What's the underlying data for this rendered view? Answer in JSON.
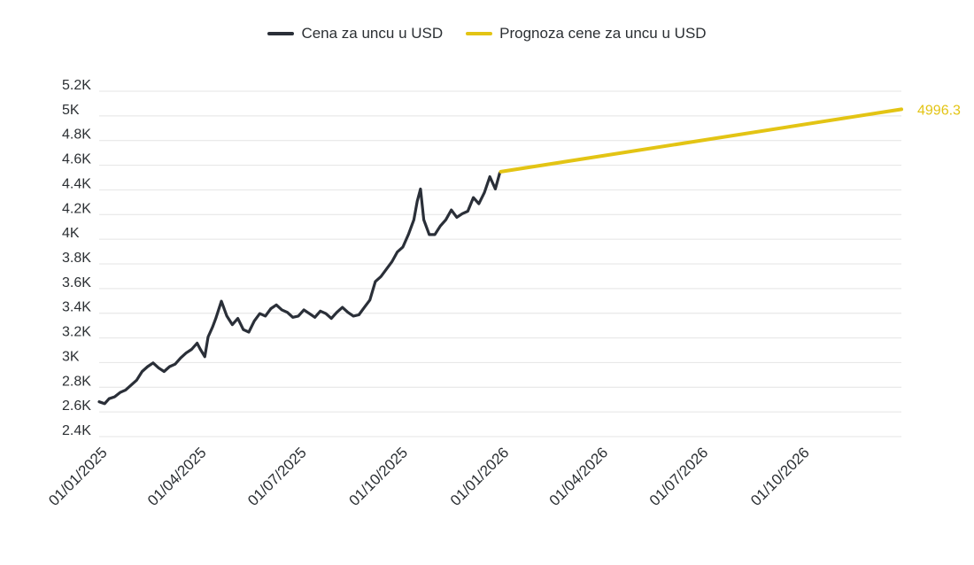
{
  "legend": {
    "actual_label": "Cena za uncu u USD",
    "forecast_label": "Prognoza cene za uncu u USD"
  },
  "colors": {
    "actual": "#2a2f38",
    "forecast": "#e3c414",
    "grid": "#e4e4e4",
    "text": "#2b2f33"
  },
  "chart_data": {
    "type": "line",
    "title": "",
    "xlabel": "",
    "ylabel": "",
    "xlim": [
      "2025-01-01",
      "2026-12-31"
    ],
    "ylim": [
      2400,
      5200
    ],
    "grid": true,
    "legend_position": "top-center",
    "y_ticks": [
      "2.4K",
      "2.6K",
      "2.8K",
      "3K",
      "3.2K",
      "3.4K",
      "3.6K",
      "3.8K",
      "4K",
      "4.2K",
      "4.4K",
      "4.6K",
      "4.8K",
      "5K",
      "5.2K"
    ],
    "y_tick_values": [
      2400,
      2600,
      2800,
      3000,
      3200,
      3400,
      3600,
      3800,
      4000,
      4200,
      4400,
      4600,
      4800,
      5000,
      5200
    ],
    "x_ticks": [
      "01/01/2025",
      "01/04/2025",
      "01/07/2025",
      "01/10/2025",
      "01/01/2026",
      "01/04/2026",
      "01/07/2026",
      "01/10/2026"
    ],
    "x_tick_values": [
      "2025-01-01",
      "2025-04-01",
      "2025-07-01",
      "2025-10-01",
      "2026-01-01",
      "2026-04-01",
      "2026-07-01",
      "2026-10-01"
    ],
    "series": [
      {
        "name": "Cena za uncu u USD",
        "x": [
          "2025-01-01",
          "2025-01-06",
          "2025-01-10",
          "2025-01-15",
          "2025-01-20",
          "2025-01-25",
          "2025-01-30",
          "2025-02-04",
          "2025-02-09",
          "2025-02-14",
          "2025-02-19",
          "2025-02-24",
          "2025-03-01",
          "2025-03-06",
          "2025-03-11",
          "2025-03-16",
          "2025-03-21",
          "2025-03-26",
          "2025-03-31",
          "2025-04-03",
          "2025-04-07",
          "2025-04-10",
          "2025-04-14",
          "2025-04-17",
          "2025-04-22",
          "2025-04-27",
          "2025-05-02",
          "2025-05-07",
          "2025-05-12",
          "2025-05-17",
          "2025-05-22",
          "2025-05-27",
          "2025-06-01",
          "2025-06-06",
          "2025-06-11",
          "2025-06-16",
          "2025-06-21",
          "2025-06-26",
          "2025-07-01",
          "2025-07-06",
          "2025-07-11",
          "2025-07-16",
          "2025-07-21",
          "2025-07-26",
          "2025-07-31",
          "2025-08-05",
          "2025-08-10",
          "2025-08-15",
          "2025-08-20",
          "2025-08-25",
          "2025-08-30",
          "2025-09-04",
          "2025-09-09",
          "2025-09-14",
          "2025-09-19",
          "2025-09-24",
          "2025-09-29",
          "2025-10-04",
          "2025-10-09",
          "2025-10-14",
          "2025-10-17",
          "2025-10-20",
          "2025-10-23",
          "2025-10-28",
          "2025-11-02",
          "2025-11-07",
          "2025-11-12",
          "2025-11-17",
          "2025-11-22",
          "2025-11-27",
          "2025-12-02",
          "2025-12-07",
          "2025-12-12",
          "2025-12-17",
          "2025-12-22",
          "2025-12-27",
          "2025-12-31"
        ],
        "y": [
          2625,
          2610,
          2650,
          2665,
          2700,
          2720,
          2760,
          2800,
          2870,
          2910,
          2940,
          2900,
          2870,
          2910,
          2930,
          2980,
          3020,
          3050,
          3100,
          3050,
          2990,
          3150,
          3230,
          3300,
          3440,
          3320,
          3250,
          3300,
          3210,
          3190,
          3280,
          3340,
          3320,
          3380,
          3410,
          3370,
          3350,
          3310,
          3320,
          3370,
          3340,
          3310,
          3360,
          3340,
          3300,
          3350,
          3390,
          3350,
          3320,
          3330,
          3390,
          3450,
          3600,
          3640,
          3700,
          3760,
          3840,
          3880,
          3980,
          4100,
          4250,
          4350,
          4100,
          3980,
          3980,
          4050,
          4100,
          4180,
          4120,
          4150,
          4170,
          4280,
          4230,
          4320,
          4450,
          4350,
          4480
        ]
      },
      {
        "name": "Prognoza cene za uncu u USD",
        "x": [
          "2026-01-01",
          "2026-12-31"
        ],
        "y": [
          4490,
          4996.3
        ]
      }
    ],
    "annotations": [
      {
        "text": "4996.3",
        "x": "2026-12-31",
        "y": 4996.3
      }
    ]
  }
}
